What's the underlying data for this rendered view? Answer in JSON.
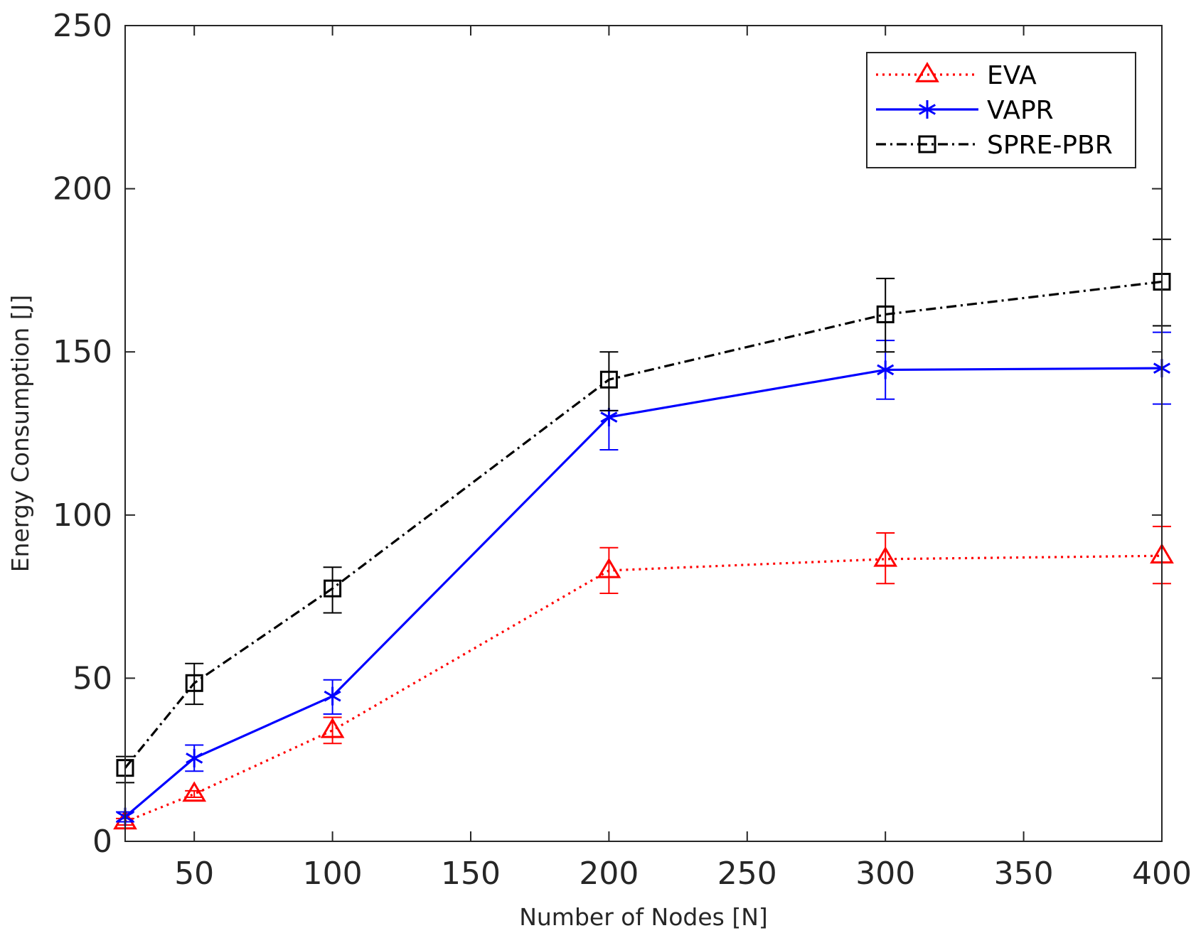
{
  "chart_data": {
    "type": "line",
    "title": "",
    "xlabel": "Number of Nodes [N]",
    "ylabel": "Energy Consumption [J]",
    "xlim": [
      25,
      400
    ],
    "ylim": [
      0,
      250
    ],
    "xticks": [
      50,
      100,
      150,
      200,
      250,
      300,
      350,
      400
    ],
    "yticks": [
      0,
      50,
      100,
      150,
      200,
      250
    ],
    "grid": false,
    "legend_position": "top-right",
    "x": [
      25,
      50,
      100,
      200,
      300,
      400
    ],
    "series": [
      {
        "name": "EVA",
        "color": "#ff0000",
        "line_style": "dotted",
        "marker": "triangle",
        "values": [
          6,
          14.5,
          34,
          83,
          86.5,
          87.5
        ],
        "error_low": [
          5,
          13.5,
          30,
          76,
          79,
          79
        ],
        "error_high": [
          7,
          15.5,
          38,
          90,
          94.5,
          96.5
        ]
      },
      {
        "name": "VAPR",
        "color": "#0000ff",
        "line_style": "solid",
        "marker": "asterisk",
        "values": [
          7.5,
          25.5,
          44.5,
          130,
          144.5,
          145
        ],
        "error_low": [
          6,
          21.5,
          39,
          120,
          135.5,
          134
        ],
        "error_high": [
          9,
          29.5,
          49.5,
          132,
          153.5,
          156
        ]
      },
      {
        "name": "SPRE-PBR",
        "color": "#000000",
        "line_style": "dashdot",
        "marker": "square",
        "values": [
          22.5,
          48.5,
          77.5,
          141.5,
          161.5,
          171.5
        ],
        "error_low": [
          18,
          42,
          70,
          132,
          150,
          158
        ],
        "error_high": [
          26,
          54.5,
          84,
          150,
          172.5,
          184.5
        ]
      }
    ]
  }
}
